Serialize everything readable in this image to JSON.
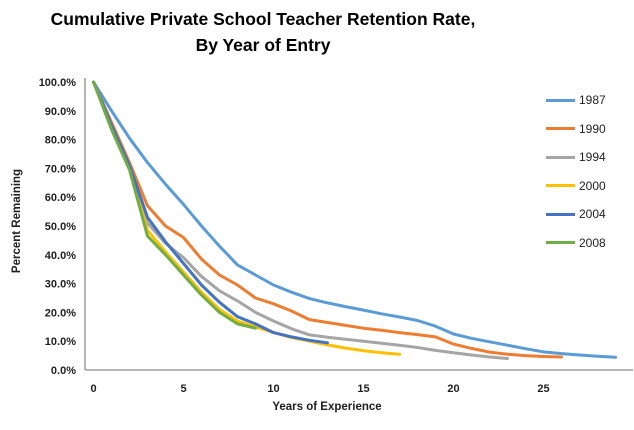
{
  "title": {
    "line1": "Cumulative Private School Teacher Retention Rate,",
    "line2": "By Year of Entry"
  },
  "axes": {
    "y": {
      "label": "Percent Remaining",
      "ticks": [
        {
          "value": 0,
          "label": "0.0%"
        },
        {
          "value": 10,
          "label": "10.0%"
        },
        {
          "value": 20,
          "label": "20.0%"
        },
        {
          "value": 30,
          "label": "30.0%"
        },
        {
          "value": 40,
          "label": "40.0%"
        },
        {
          "value": 50,
          "label": "50.0%"
        },
        {
          "value": 60,
          "label": "60.0%"
        },
        {
          "value": 70,
          "label": "70.0%"
        },
        {
          "value": 80,
          "label": "80.0%"
        },
        {
          "value": 90,
          "label": "90.0%"
        },
        {
          "value": 100,
          "label": "100.0%"
        }
      ]
    },
    "x": {
      "label": "Years of Experience",
      "ticks": [
        {
          "value": 0,
          "label": "0"
        },
        {
          "value": 5,
          "label": "5"
        },
        {
          "value": 10,
          "label": "10"
        },
        {
          "value": 15,
          "label": "15"
        },
        {
          "value": 20,
          "label": "20"
        },
        {
          "value": 25,
          "label": "25"
        }
      ]
    }
  },
  "chart_data": {
    "type": "line",
    "title": "Cumulative Private School Teacher Retention Rate, By Year of Entry",
    "xlabel": "Years of Experience",
    "ylabel": "Percent Remaining",
    "xlim": [
      0,
      30
    ],
    "ylim": [
      0,
      100
    ],
    "y_tick_step_percent": 10,
    "grid": false,
    "legend_position": "right",
    "axis_color": "#8C8C8C",
    "series": [
      {
        "name": "1987",
        "color": "#5B9BD5",
        "x": [
          0,
          1,
          2,
          3,
          4,
          5,
          6,
          7,
          8,
          9,
          10,
          11,
          12,
          13,
          14,
          15,
          16,
          17,
          18,
          19,
          20,
          21,
          22,
          23,
          24,
          25,
          26,
          27,
          28,
          29
        ],
        "values": [
          100,
          90,
          80.5,
          72,
          64.5,
          57.5,
          50,
          43,
          36.5,
          33,
          29.5,
          27,
          24.8,
          23.3,
          22,
          20.8,
          19.5,
          18.4,
          17.2,
          15.2,
          12.5,
          11,
          9.8,
          8.6,
          7.4,
          6.3,
          5.7,
          5.2,
          4.8,
          4.4
        ]
      },
      {
        "name": "1990",
        "color": "#ED7D31",
        "x": [
          0,
          1,
          2,
          3,
          4,
          5,
          6,
          7,
          8,
          9,
          10,
          11,
          12,
          13,
          14,
          15,
          16,
          17,
          18,
          19,
          20,
          21,
          22,
          23,
          24,
          25,
          26
        ],
        "values": [
          100,
          86,
          72,
          57,
          50,
          46,
          38.5,
          33,
          29.5,
          25,
          23,
          20.5,
          17.5,
          16.5,
          15.5,
          14.5,
          13.8,
          13,
          12.3,
          11.5,
          9,
          7.5,
          6.2,
          5.5,
          5,
          4.7,
          4.5
        ]
      },
      {
        "name": "1994",
        "color": "#A5A5A5",
        "x": [
          0,
          1,
          2,
          3,
          4,
          5,
          6,
          7,
          8,
          9,
          10,
          11,
          12,
          13,
          14,
          15,
          16,
          17,
          18,
          19,
          20,
          21,
          22,
          23
        ],
        "values": [
          100,
          84.5,
          70.5,
          51,
          44,
          39,
          32.5,
          27.5,
          24,
          20,
          17,
          14.3,
          12.2,
          11.4,
          10.7,
          10,
          9.3,
          8.6,
          7.8,
          6.8,
          6,
          5.2,
          4.5,
          4
        ]
      },
      {
        "name": "2000",
        "color": "#FFC000",
        "x": [
          0,
          1,
          2,
          3,
          4,
          5,
          6,
          7,
          8,
          9,
          10,
          11,
          12,
          13,
          14,
          15,
          16,
          17
        ],
        "values": [
          100,
          84,
          70,
          48.5,
          41,
          34,
          27,
          21,
          17,
          15,
          13,
          11.3,
          10,
          8.7,
          7.6,
          6.7,
          6,
          5.5
        ]
      },
      {
        "name": "2004",
        "color": "#4472C4",
        "x": [
          0,
          1,
          2,
          3,
          4,
          5,
          6,
          7,
          8,
          9,
          10,
          11,
          12,
          13
        ],
        "values": [
          100,
          85,
          71,
          53,
          44.5,
          37,
          29.5,
          23.5,
          18.5,
          16,
          13,
          11.5,
          10.3,
          9.4
        ]
      },
      {
        "name": "2008",
        "color": "#70AD47",
        "x": [
          0,
          1,
          2,
          3,
          4,
          5,
          6,
          7,
          8,
          9
        ],
        "values": [
          100,
          83.5,
          69.5,
          46.5,
          40,
          33,
          26,
          20,
          16,
          14.5
        ]
      }
    ]
  }
}
